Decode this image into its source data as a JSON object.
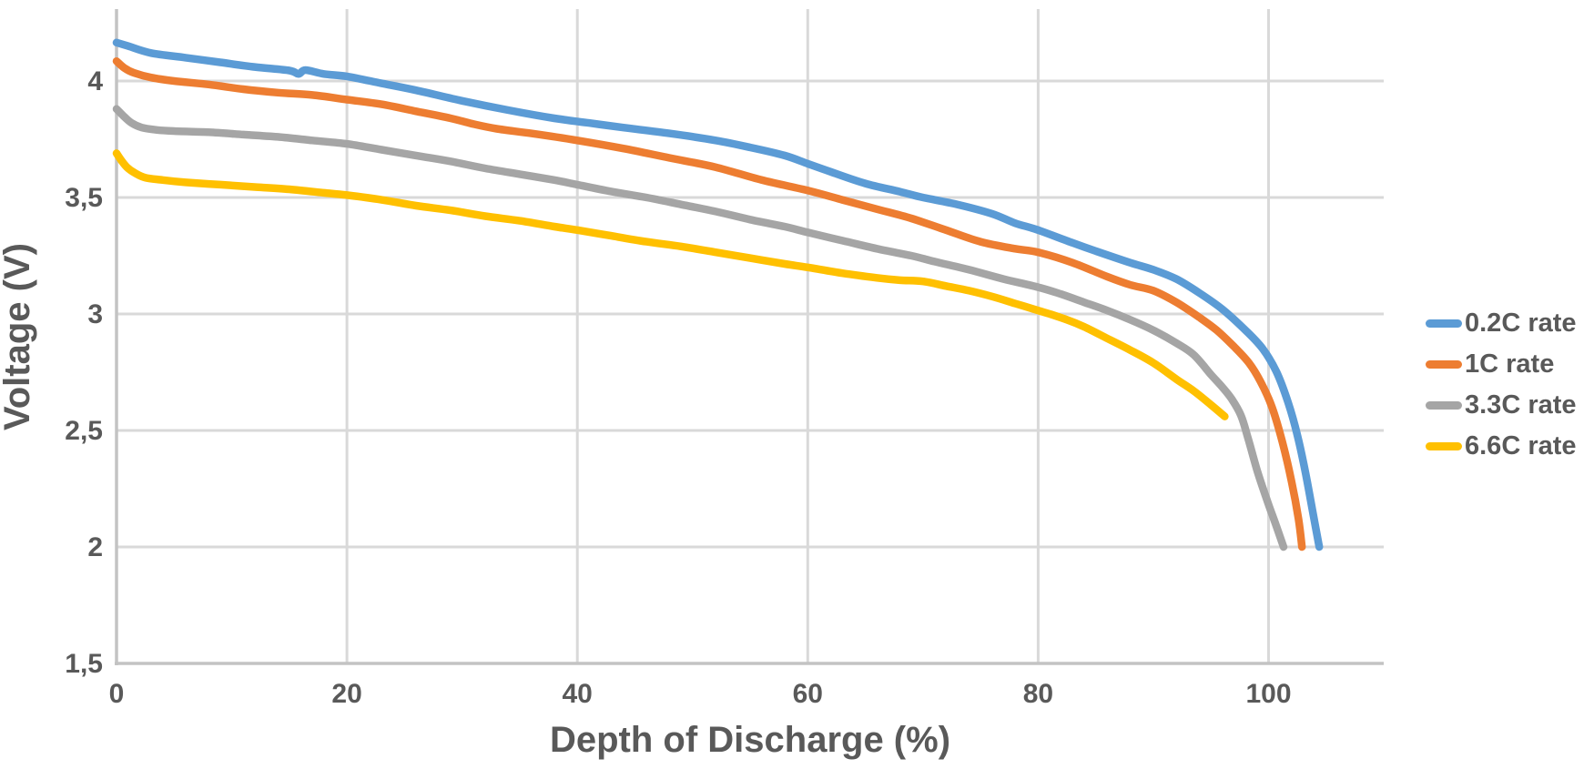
{
  "chart_data": {
    "type": "line",
    "title": "",
    "xlabel": "Depth of Discharge (%)",
    "ylabel": "Voltage (V)",
    "grid": true,
    "legend_position": "right",
    "x_axis": {
      "min": 0,
      "max": 110,
      "ticks": [
        0,
        20,
        40,
        60,
        80,
        100
      ],
      "tick_labels": [
        "0",
        "20",
        "40",
        "60",
        "80",
        "100"
      ]
    },
    "y_axis": {
      "min": 1.5,
      "max": 4.31,
      "ticks": [
        1.5,
        2,
        2.5,
        3,
        3.5,
        4
      ],
      "tick_labels": [
        "1,5",
        "2",
        "2,5",
        "3",
        "3,5",
        "4"
      ]
    },
    "series": [
      {
        "name": "0.2C rate",
        "color": "#5B9BD5",
        "points": [
          [
            0,
            4.165
          ],
          [
            1,
            4.15
          ],
          [
            3,
            4.12
          ],
          [
            6,
            4.1
          ],
          [
            9,
            4.08
          ],
          [
            12,
            4.06
          ],
          [
            15,
            4.045
          ],
          [
            15.8,
            4.03
          ],
          [
            16.4,
            4.047
          ],
          [
            18,
            4.03
          ],
          [
            20,
            4.02
          ],
          [
            23,
            3.99
          ],
          [
            26,
            3.96
          ],
          [
            30,
            3.915
          ],
          [
            34,
            3.875
          ],
          [
            38,
            3.84
          ],
          [
            41,
            3.82
          ],
          [
            44,
            3.8
          ],
          [
            48,
            3.775
          ],
          [
            52,
            3.745
          ],
          [
            55,
            3.715
          ],
          [
            58,
            3.68
          ],
          [
            60,
            3.645
          ],
          [
            62,
            3.61
          ],
          [
            65,
            3.56
          ],
          [
            68,
            3.525
          ],
          [
            70,
            3.5
          ],
          [
            73,
            3.47
          ],
          [
            76,
            3.43
          ],
          [
            78,
            3.39
          ],
          [
            80,
            3.36
          ],
          [
            83,
            3.305
          ],
          [
            85,
            3.27
          ],
          [
            88,
            3.22
          ],
          [
            90,
            3.19
          ],
          [
            92,
            3.15
          ],
          [
            94,
            3.09
          ],
          [
            96,
            3.02
          ],
          [
            98,
            2.93
          ],
          [
            99.5,
            2.85
          ],
          [
            100.7,
            2.75
          ],
          [
            101.7,
            2.62
          ],
          [
            102.5,
            2.48
          ],
          [
            103.2,
            2.32
          ],
          [
            103.8,
            2.16
          ],
          [
            104.4,
            2.0
          ]
        ]
      },
      {
        "name": "1C rate",
        "color": "#ED7D31",
        "points": [
          [
            0,
            4.085
          ],
          [
            0.7,
            4.055
          ],
          [
            1.5,
            4.035
          ],
          [
            3,
            4.015
          ],
          [
            5,
            4.0
          ],
          [
            8,
            3.985
          ],
          [
            11,
            3.965
          ],
          [
            14,
            3.95
          ],
          [
            17,
            3.94
          ],
          [
            20,
            3.92
          ],
          [
            23,
            3.9
          ],
          [
            26,
            3.87
          ],
          [
            29,
            3.84
          ],
          [
            31,
            3.815
          ],
          [
            33,
            3.795
          ],
          [
            36,
            3.775
          ],
          [
            40,
            3.745
          ],
          [
            44,
            3.71
          ],
          [
            48,
            3.67
          ],
          [
            52,
            3.63
          ],
          [
            56,
            3.575
          ],
          [
            60,
            3.53
          ],
          [
            63,
            3.49
          ],
          [
            66,
            3.45
          ],
          [
            69,
            3.41
          ],
          [
            72,
            3.36
          ],
          [
            75,
            3.31
          ],
          [
            78,
            3.28
          ],
          [
            80,
            3.265
          ],
          [
            83,
            3.22
          ],
          [
            86,
            3.16
          ],
          [
            88,
            3.125
          ],
          [
            90,
            3.1
          ],
          [
            92,
            3.05
          ],
          [
            94,
            2.985
          ],
          [
            95.5,
            2.93
          ],
          [
            97,
            2.86
          ],
          [
            98.3,
            2.79
          ],
          [
            99.3,
            2.71
          ],
          [
            100.3,
            2.6
          ],
          [
            101.2,
            2.45
          ],
          [
            102,
            2.28
          ],
          [
            102.6,
            2.12
          ],
          [
            102.9,
            2.0
          ]
        ]
      },
      {
        "name": "3.3C rate",
        "color": "#A5A5A5",
        "points": [
          [
            0,
            3.88
          ],
          [
            0.6,
            3.85
          ],
          [
            1.3,
            3.82
          ],
          [
            2.2,
            3.8
          ],
          [
            3.5,
            3.79
          ],
          [
            5,
            3.785
          ],
          [
            8,
            3.78
          ],
          [
            11,
            3.77
          ],
          [
            14,
            3.76
          ],
          [
            17,
            3.745
          ],
          [
            20,
            3.73
          ],
          [
            23,
            3.705
          ],
          [
            26,
            3.68
          ],
          [
            29,
            3.655
          ],
          [
            32,
            3.625
          ],
          [
            35,
            3.6
          ],
          [
            38,
            3.575
          ],
          [
            40,
            3.555
          ],
          [
            43,
            3.525
          ],
          [
            46,
            3.5
          ],
          [
            49,
            3.47
          ],
          [
            52,
            3.44
          ],
          [
            55,
            3.405
          ],
          [
            58,
            3.375
          ],
          [
            60,
            3.35
          ],
          [
            63,
            3.315
          ],
          [
            66,
            3.28
          ],
          [
            69,
            3.25
          ],
          [
            71,
            3.225
          ],
          [
            74,
            3.19
          ],
          [
            77,
            3.15
          ],
          [
            80,
            3.115
          ],
          [
            82,
            3.085
          ],
          [
            84,
            3.05
          ],
          [
            86,
            3.015
          ],
          [
            88,
            2.975
          ],
          [
            90,
            2.93
          ],
          [
            92,
            2.875
          ],
          [
            93.5,
            2.825
          ],
          [
            95,
            2.74
          ],
          [
            96,
            2.685
          ],
          [
            96.8,
            2.635
          ],
          [
            97.6,
            2.565
          ],
          [
            98.2,
            2.47
          ],
          [
            99,
            2.33
          ],
          [
            99.8,
            2.21
          ],
          [
            100.6,
            2.1
          ],
          [
            101.3,
            2.0
          ]
        ]
      },
      {
        "name": "6.6C rate",
        "color": "#FFC000",
        "points": [
          [
            0,
            3.69
          ],
          [
            0.4,
            3.66
          ],
          [
            0.9,
            3.63
          ],
          [
            1.6,
            3.605
          ],
          [
            2.5,
            3.585
          ],
          [
            4,
            3.575
          ],
          [
            6,
            3.565
          ],
          [
            9,
            3.555
          ],
          [
            12,
            3.545
          ],
          [
            15,
            3.535
          ],
          [
            18,
            3.52
          ],
          [
            20,
            3.51
          ],
          [
            23,
            3.49
          ],
          [
            26,
            3.465
          ],
          [
            29,
            3.445
          ],
          [
            32,
            3.42
          ],
          [
            35,
            3.4
          ],
          [
            38,
            3.375
          ],
          [
            40,
            3.36
          ],
          [
            43,
            3.335
          ],
          [
            46,
            3.31
          ],
          [
            49,
            3.29
          ],
          [
            52,
            3.265
          ],
          [
            55,
            3.24
          ],
          [
            58,
            3.215
          ],
          [
            60,
            3.2
          ],
          [
            63,
            3.175
          ],
          [
            66,
            3.155
          ],
          [
            68,
            3.145
          ],
          [
            70,
            3.14
          ],
          [
            72,
            3.12
          ],
          [
            74,
            3.1
          ],
          [
            76,
            3.075
          ],
          [
            78,
            3.045
          ],
          [
            80,
            3.015
          ],
          [
            81,
            3.0
          ],
          [
            82.5,
            2.975
          ],
          [
            84,
            2.945
          ],
          [
            86,
            2.895
          ],
          [
            88,
            2.845
          ],
          [
            90,
            2.79
          ],
          [
            92,
            2.72
          ],
          [
            93.5,
            2.67
          ],
          [
            95,
            2.61
          ],
          [
            96.2,
            2.56
          ]
        ]
      }
    ]
  },
  "colors": {
    "text": "#595959",
    "gridline": "#D9D9D9",
    "axis": "#C3C3C3",
    "background": "#FFFFFF"
  }
}
